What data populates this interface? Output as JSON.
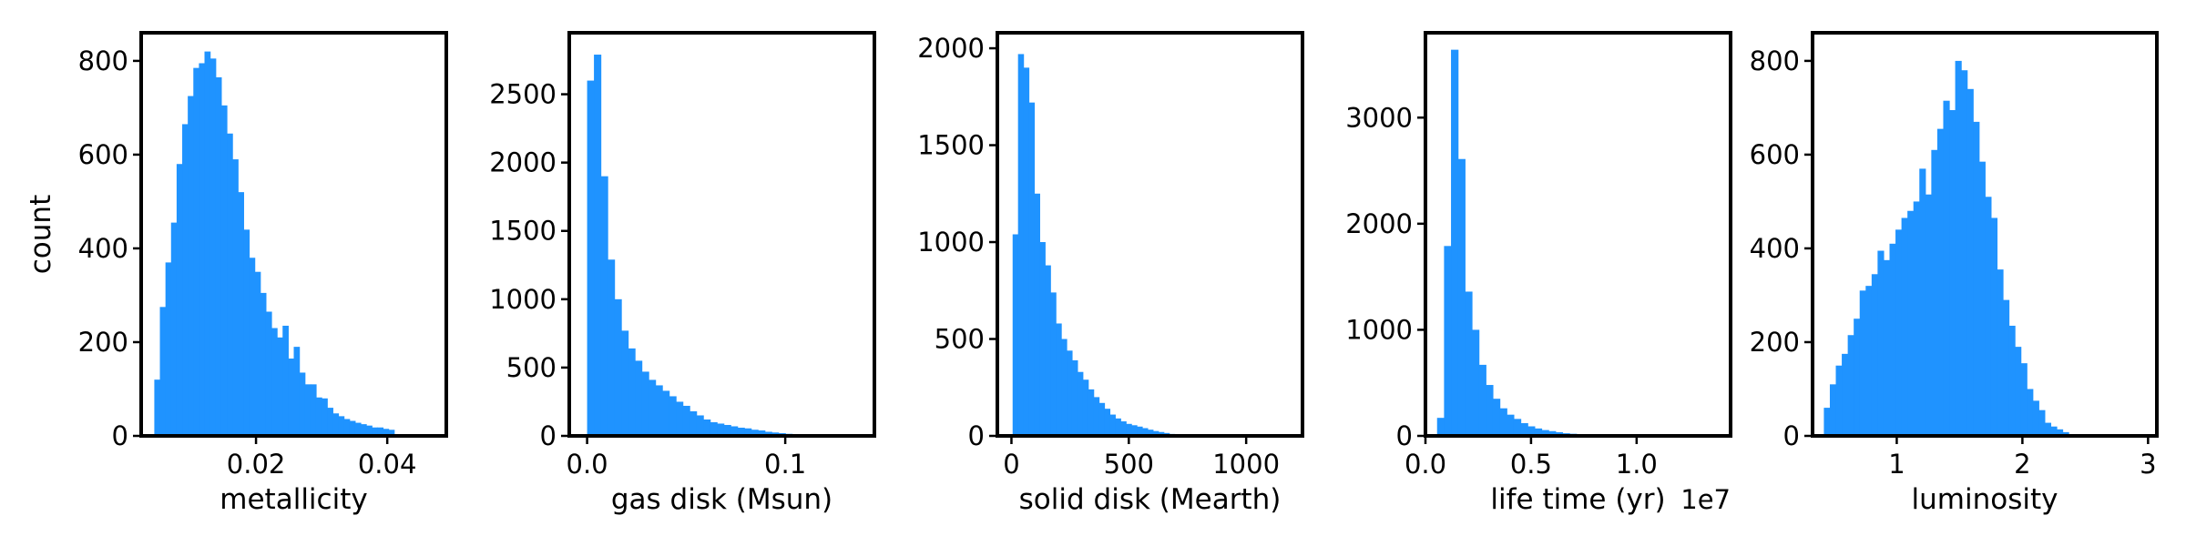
{
  "chart_data": [
    {
      "type": "bar",
      "xlabel": "metallicity",
      "ylabel": "count",
      "bar_color": "#1f93ff",
      "xlim": [
        0.0025,
        0.049
      ],
      "ylim": [
        0,
        860
      ],
      "xticks": [
        {
          "value": 0.02,
          "label": "0.02"
        },
        {
          "value": 0.04,
          "label": "0.04"
        }
      ],
      "yticks": [
        {
          "value": 0,
          "label": "0"
        },
        {
          "value": 200,
          "label": "200"
        },
        {
          "value": 400,
          "label": "400"
        },
        {
          "value": 600,
          "label": "600"
        },
        {
          "value": 800,
          "label": "800"
        }
      ],
      "bin_start": 0.0045,
      "bin_width": 0.00085,
      "counts": [
        120,
        275,
        370,
        455,
        580,
        665,
        725,
        785,
        795,
        820,
        805,
        765,
        705,
        645,
        590,
        520,
        440,
        380,
        350,
        305,
        265,
        230,
        210,
        235,
        165,
        190,
        135,
        110,
        110,
        82,
        80,
        60,
        48,
        42,
        36,
        32,
        28,
        25,
        22,
        18,
        18,
        15,
        13
      ]
    },
    {
      "type": "bar",
      "xlabel": "gas disk (Msun)",
      "ylabel": "",
      "bar_color": "#1f93ff",
      "xlim": [
        -0.009,
        0.145
      ],
      "ylim": [
        0,
        2950
      ],
      "xticks": [
        {
          "value": 0.0,
          "label": "0.0"
        },
        {
          "value": 0.1,
          "label": "0.1"
        }
      ],
      "yticks": [
        {
          "value": 0,
          "label": "0"
        },
        {
          "value": 500,
          "label": "500"
        },
        {
          "value": 1000,
          "label": "1000"
        },
        {
          "value": 1500,
          "label": "1500"
        },
        {
          "value": 2000,
          "label": "2000"
        },
        {
          "value": 2500,
          "label": "2500"
        }
      ],
      "bin_start": 0.0,
      "bin_width": 0.00345,
      "counts": [
        2600,
        2790,
        1900,
        1290,
        1000,
        770,
        640,
        550,
        470,
        410,
        370,
        330,
        290,
        250,
        220,
        180,
        150,
        120,
        100,
        90,
        80,
        70,
        60,
        55,
        45,
        40,
        30,
        25,
        20,
        15,
        12,
        10,
        8,
        6,
        5,
        4,
        3,
        2,
        2
      ]
    },
    {
      "type": "bar",
      "xlabel": "solid disk (Mearth)",
      "ylabel": "",
      "bar_color": "#1f93ff",
      "xlim": [
        -60,
        1240
      ],
      "ylim": [
        0,
        2080
      ],
      "xticks": [
        {
          "value": 0,
          "label": "0"
        },
        {
          "value": 500,
          "label": "500"
        },
        {
          "value": 1000,
          "label": "1000"
        }
      ],
      "yticks": [
        {
          "value": 0,
          "label": "0"
        },
        {
          "value": 500,
          "label": "500"
        },
        {
          "value": 1000,
          "label": "1000"
        },
        {
          "value": 1500,
          "label": "1500"
        },
        {
          "value": 2000,
          "label": "2000"
        }
      ],
      "bin_start": 5,
      "bin_width": 23,
      "counts": [
        1040,
        1970,
        1900,
        1720,
        1250,
        1000,
        880,
        740,
        580,
        500,
        440,
        390,
        330,
        290,
        240,
        200,
        170,
        140,
        110,
        90,
        75,
        62,
        55,
        48,
        40,
        32,
        25,
        20,
        15,
        10,
        8,
        6,
        4,
        3,
        2,
        2
      ]
    },
    {
      "type": "bar",
      "xlabel": "life time (yr)",
      "ylabel": "",
      "offset_text": "1e7",
      "bar_color": "#1f93ff",
      "xlim": [
        0.0,
        1.445
      ],
      "ylim": [
        0,
        3800
      ],
      "xticks": [
        {
          "value": 0.0,
          "label": "0.0"
        },
        {
          "value": 0.5,
          "label": "0.5"
        },
        {
          "value": 1.0,
          "label": "1.0"
        }
      ],
      "yticks": [
        {
          "value": 0,
          "label": "0"
        },
        {
          "value": 1000,
          "label": "1000"
        },
        {
          "value": 2000,
          "label": "2000"
        },
        {
          "value": 3000,
          "label": "3000"
        }
      ],
      "bin_start": 0.055,
      "bin_width": 0.033,
      "counts": [
        170,
        1790,
        3640,
        2610,
        1360,
        1000,
        670,
        480,
        350,
        260,
        200,
        160,
        120,
        90,
        70,
        55,
        45,
        35,
        25,
        20,
        15,
        10,
        8,
        5,
        3,
        2
      ]
    },
    {
      "type": "bar",
      "xlabel": "luminosity",
      "ylabel": "",
      "bar_color": "#1f93ff",
      "xlim": [
        0.33,
        3.07
      ],
      "ylim": [
        0,
        860
      ],
      "xticks": [
        {
          "value": 1,
          "label": "1"
        },
        {
          "value": 2,
          "label": "2"
        },
        {
          "value": 3,
          "label": "3"
        }
      ],
      "yticks": [
        {
          "value": 0,
          "label": "0"
        },
        {
          "value": 200,
          "label": "200"
        },
        {
          "value": 400,
          "label": "400"
        },
        {
          "value": 600,
          "label": "600"
        },
        {
          "value": 800,
          "label": "800"
        }
      ],
      "bin_start": 0.42,
      "bin_width": 0.0475,
      "counts": [
        60,
        110,
        150,
        175,
        215,
        250,
        310,
        320,
        345,
        395,
        375,
        410,
        440,
        465,
        480,
        500,
        570,
        515,
        610,
        655,
        715,
        695,
        800,
        780,
        740,
        670,
        585,
        510,
        465,
        355,
        290,
        235,
        190,
        155,
        100,
        75,
        55,
        28,
        20,
        14,
        8
      ]
    }
  ]
}
